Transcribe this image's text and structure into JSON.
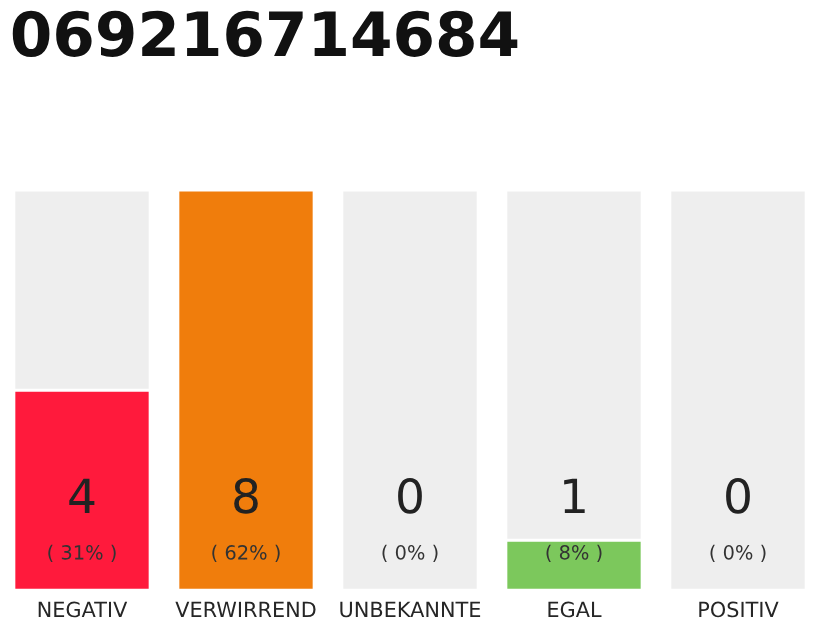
{
  "chart_data": {
    "type": "bar",
    "title": "069216714684",
    "categories": [
      "NEGATIV",
      "VERWIRREND",
      "UNBEKANNTE",
      "EGAL",
      "POSITIV"
    ],
    "stacked": true,
    "series": [
      {
        "colors": [
          "#ff1a3c",
          "#f07d0c",
          null,
          "#7cc85c",
          null
        ],
        "values": [
          4,
          8,
          0,
          1,
          0
        ],
        "value_labels": [
          "4",
          "8",
          "0",
          "1",
          "0"
        ]
      },
      {
        "color": "#eeeeee",
        "values": [
          4,
          null,
          8,
          7,
          8
        ]
      }
    ],
    "annotations": [
      "( 31% )",
      "( 62% )",
      "( 0% )",
      "( 8% )",
      "( 0% )"
    ],
    "legend": false
  }
}
